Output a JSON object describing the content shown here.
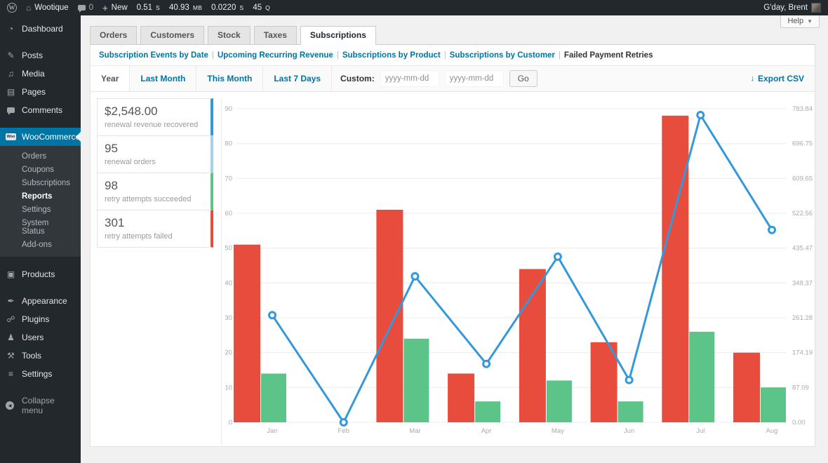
{
  "admin_bar": {
    "site_name": "Wootique",
    "comment_count": "0",
    "new_label": "New",
    "stats": [
      {
        "value": "0.51",
        "unit": "S"
      },
      {
        "value": "40.93",
        "unit": "MB"
      },
      {
        "value": "0.0220",
        "unit": "S"
      },
      {
        "value": "45",
        "unit": "Q"
      }
    ],
    "greeting": "G'day, Brent"
  },
  "help": {
    "label": "Help"
  },
  "sidebar": {
    "items": [
      {
        "label": "Dashboard"
      },
      {
        "label": "Posts"
      },
      {
        "label": "Media"
      },
      {
        "label": "Pages"
      },
      {
        "label": "Comments"
      },
      {
        "label": "WooCommerce"
      },
      {
        "label": "Products"
      },
      {
        "label": "Appearance"
      },
      {
        "label": "Plugins"
      },
      {
        "label": "Users"
      },
      {
        "label": "Tools"
      },
      {
        "label": "Settings"
      },
      {
        "label": "Collapse menu"
      }
    ],
    "woo_submenu": [
      "Orders",
      "Coupons",
      "Subscriptions",
      "Reports",
      "Settings",
      "System Status",
      "Add-ons"
    ],
    "active_item": "WooCommerce",
    "active_submenu": "Reports"
  },
  "tabs": {
    "items": [
      "Orders",
      "Customers",
      "Stock",
      "Taxes",
      "Subscriptions"
    ],
    "active": "Subscriptions"
  },
  "report_nav": {
    "links": [
      "Subscription Events by Date",
      "Upcoming Recurring Revenue",
      "Subscriptions by Product",
      "Subscriptions by Customer",
      "Failed Payment Retries"
    ],
    "current": "Failed Payment Retries"
  },
  "toolbar": {
    "ranges": [
      "Year",
      "Last Month",
      "This Month",
      "Last 7 Days"
    ],
    "active_range": "Year",
    "custom_label": "Custom:",
    "date_placeholder": "yyyy-mm-dd",
    "go_label": "Go",
    "export_label": "Export CSV"
  },
  "legend_cards": [
    {
      "value": "$2,548.00",
      "label": "renewal revenue recovered",
      "color": "#3498db"
    },
    {
      "value": "95",
      "label": "renewal orders",
      "color": "#aacfe9"
    },
    {
      "value": "98",
      "label": "retry attempts succeeded",
      "color": "#5cc488"
    },
    {
      "value": "301",
      "label": "retry attempts failed",
      "color": "#e74c3c"
    }
  ],
  "chart_data": {
    "type": "bar+line",
    "categories": [
      "Jan",
      "Feb",
      "Mar",
      "Apr",
      "May",
      "Jun",
      "Jul",
      "Aug"
    ],
    "series": [
      {
        "name": "retry attempts failed",
        "type": "bar",
        "color": "#e74c3c",
        "axis": "left",
        "values": [
          51,
          0,
          61,
          14,
          44,
          23,
          88,
          20
        ]
      },
      {
        "name": "retry attempts succeeded",
        "type": "bar",
        "color": "#5cc488",
        "axis": "left",
        "values": [
          14,
          0,
          24,
          6,
          12,
          6,
          26,
          10
        ]
      },
      {
        "name": "renewal revenue recovered",
        "type": "line",
        "color": "#3498db",
        "axis": "right",
        "values": [
          268,
          0,
          365,
          146,
          414,
          106,
          768,
          481
        ]
      }
    ],
    "left_axis": {
      "min": 0,
      "max": 90,
      "ticks": [
        0,
        10,
        20,
        30,
        40,
        50,
        60,
        70,
        80,
        90
      ]
    },
    "right_axis": {
      "min": 0,
      "max": 783.84,
      "tick_labels": [
        "0.00",
        "87.09",
        "174.19",
        "261.28",
        "348.37",
        "435.47",
        "522.56",
        "609.65",
        "696.75",
        "783.84"
      ]
    },
    "grid": true,
    "legend_position": "left-cards"
  },
  "colors": {
    "accent_blue": "#0074a2",
    "bar_red": "#e74c3c",
    "bar_green": "#5cc488",
    "line_blue": "#3498db",
    "menu_highlight": "#0074a2"
  }
}
